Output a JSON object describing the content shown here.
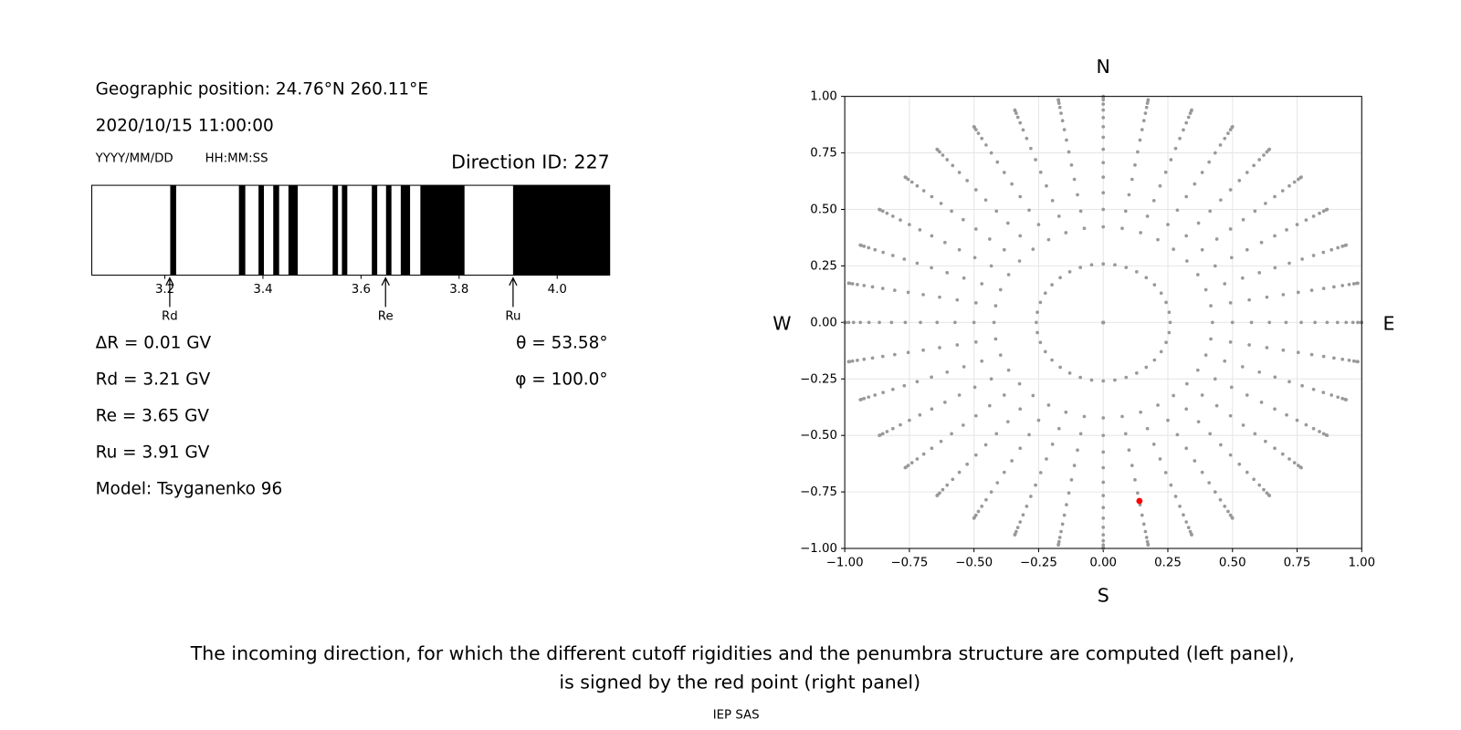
{
  "chart_data": [
    {
      "type": "penumbra",
      "position": "Geographic position: 24.76°N 260.11°E",
      "datetime": "2020/10/15 11:00:00",
      "date_format": "YYYY/MM/DD",
      "time_format": "HH:MM:SS",
      "direction": "Direction ID: 227",
      "xlim": [
        3.051,
        4.107
      ],
      "xticks": [
        3.2,
        3.4,
        3.6,
        3.8,
        {
          "value": 4,
          "label": "4.0"
        }
      ],
      "color": "#000000",
      "intervals": [
        [
          3.211,
          3.223
        ],
        [
          3.351,
          3.364
        ],
        [
          3.391,
          3.402
        ],
        [
          3.421,
          3.433
        ],
        [
          3.452,
          3.471
        ],
        [
          3.542,
          3.553
        ],
        [
          3.561,
          3.572
        ],
        [
          3.622,
          3.633
        ],
        [
          3.651,
          3.662
        ],
        [
          3.681,
          3.7
        ],
        [
          3.721,
          3.811
        ],
        [
          3.91,
          4.107
        ]
      ],
      "cutoffs": [
        {
          "name": "Rd",
          "value": 3.21,
          "label": "Rd = 3.21 GV"
        },
        {
          "name": "Re",
          "value": 3.65,
          "label": "Re = 3.65 GV"
        },
        {
          "name": "Ru",
          "value": 3.91,
          "label": "Ru = 3.91 GV"
        }
      ],
      "delta": "ΔR = 0.01 GV",
      "angles": [
        "θ = 53.58°",
        "φ = 100.0°"
      ],
      "model": "Model: Tsyganenko 96"
    },
    {
      "type": "scatter",
      "labels": {
        "north": "N",
        "south": "S",
        "west": "W",
        "east": "E"
      },
      "xlim": [
        -1,
        1
      ],
      "ylim": [
        -1,
        1
      ],
      "xticks": [
        {
          "value": -1,
          "label": "−1.00"
        },
        {
          "value": -0.75,
          "label": "−0.75"
        },
        {
          "value": -0.5,
          "label": "−0.50"
        },
        {
          "value": -0.25,
          "label": "−0.25"
        },
        {
          "value": 0,
          "label": "0.00"
        },
        0.25,
        {
          "value": 0.5,
          "label": "0.50"
        },
        0.75,
        {
          "value": 1,
          "label": "1.00"
        }
      ],
      "yticks": [
        {
          "value": -1,
          "label": "−1.00"
        },
        {
          "value": -0.75,
          "label": "−0.75"
        },
        {
          "value": -0.5,
          "label": "−0.50"
        },
        {
          "value": -0.25,
          "label": "−0.25"
        },
        {
          "value": 0,
          "label": "0.00"
        },
        0.25,
        {
          "value": 0.5,
          "label": "0.50"
        },
        0.75,
        {
          "value": 1,
          "label": "1.00"
        }
      ],
      "grid": true,
      "zenith": [
        0,
        15,
        25,
        30,
        35,
        40,
        45,
        50,
        55,
        60,
        65,
        70,
        75,
        80,
        85,
        90
      ],
      "azimuth": [
        0,
        10,
        20,
        30,
        40,
        50,
        60,
        70,
        80,
        90,
        100,
        110,
        120,
        130,
        140,
        150,
        160,
        170,
        180,
        190,
        200,
        210,
        220,
        230,
        240,
        250,
        260,
        270,
        280,
        290,
        300,
        310,
        320,
        330,
        340,
        350
      ],
      "color": "#999999",
      "highlight": {
        "x": 0.14,
        "y": -0.79,
        "color": "#ff0000"
      }
    }
  ],
  "caption": [
    "The incoming direction, for which the different cutoff rigidities and the penumbra structure are computed (left panel),",
    "is signed by the red point (right panel)"
  ],
  "footer": "IEP SAS"
}
